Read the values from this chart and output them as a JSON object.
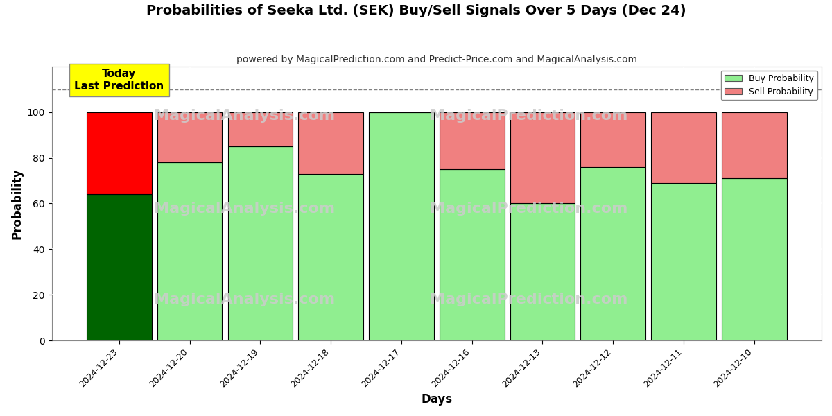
{
  "title": "Probabilities of Seeka Ltd. (SEK) Buy/Sell Signals Over 5 Days (Dec 24)",
  "subtitle": "powered by MagicalPrediction.com and Predict-Price.com and MagicalAnalysis.com",
  "xlabel": "Days",
  "ylabel": "Probability",
  "categories": [
    "2024-12-23",
    "2024-12-20",
    "2024-12-19",
    "2024-12-18",
    "2024-12-17",
    "2024-12-16",
    "2024-12-13",
    "2024-12-12",
    "2024-12-11",
    "2024-12-10"
  ],
  "buy_values": [
    64,
    78,
    85,
    73,
    100,
    75,
    60,
    76,
    69,
    71
  ],
  "sell_values": [
    36,
    22,
    15,
    27,
    0,
    25,
    40,
    24,
    31,
    29
  ],
  "buy_colors": [
    "#006400",
    "#90EE90",
    "#90EE90",
    "#90EE90",
    "#90EE90",
    "#90EE90",
    "#90EE90",
    "#90EE90",
    "#90EE90",
    "#90EE90"
  ],
  "sell_colors": [
    "#FF0000",
    "#F08080",
    "#F08080",
    "#F08080",
    "#F08080",
    "#F08080",
    "#F08080",
    "#F08080",
    "#F08080",
    "#F08080"
  ],
  "legend_buy_color": "#90EE90",
  "legend_sell_color": "#F08080",
  "today_box_color": "#FFFF00",
  "today_text": "Today\nLast Prediction",
  "dashed_line_y": 110,
  "ylim": [
    0,
    120
  ],
  "yticks": [
    0,
    20,
    40,
    60,
    80,
    100
  ],
  "watermark_color": "#cccccc",
  "bar_edge_color": "#000000",
  "bar_linewidth": 0.8,
  "grid_color": "#ffffff",
  "bg_color": "#ffffff",
  "title_fontsize": 14,
  "subtitle_fontsize": 10,
  "axis_label_fontsize": 12,
  "bar_width": 0.92
}
